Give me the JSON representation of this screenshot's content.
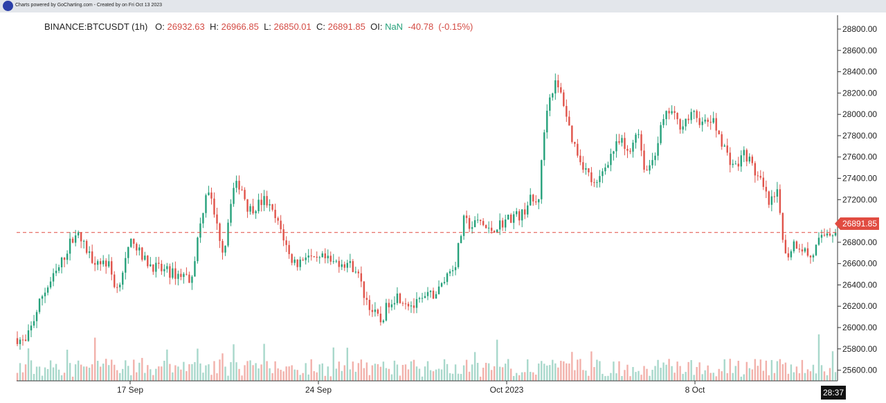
{
  "header": {
    "credit": "Charts powered by GoCharting.com - Created by  on Fri Oct 13 2023"
  },
  "legend": {
    "symbol": "BINANCE:BTCUSDT (1h)",
    "o_label": "O:",
    "o": "26932.63",
    "h_label": "H:",
    "h": "26966.85",
    "l_label": "L:",
    "l": "26850.01",
    "c_label": "C:",
    "c": "26891.85",
    "oi_label": "OI:",
    "oi": "NaN",
    "change": "-40.78",
    "change_pct": "(-0.15%)"
  },
  "last_price_label": "26891.85",
  "countdown": "28:37",
  "colors": {
    "up": "#26a17b",
    "down": "#e0534a",
    "last_line": "#e14c41",
    "volume_up": "#a8d8cb",
    "volume_down": "#f2b1ab"
  },
  "chart_data": {
    "type": "candlestick",
    "timeframe": "1h",
    "y_ticks": [
      "28800.00",
      "28600.00",
      "28400.00",
      "28200.00",
      "28000.00",
      "27800.00",
      "27600.00",
      "27400.00",
      "27200.00",
      "27000.00",
      "26800.00",
      "26600.00",
      "26400.00",
      "26200.00",
      "26000.00",
      "25800.00",
      "25600.00"
    ],
    "ylim": [
      25500,
      28930
    ],
    "x_tick_labels": [
      "17 Sep",
      "24 Sep",
      "Oct 2023",
      "8 Oct"
    ],
    "last_price": 26891.85,
    "price_path": [
      [
        0,
        25900
      ],
      [
        2,
        25850
      ],
      [
        6,
        26300
      ],
      [
        10,
        26550
      ],
      [
        14,
        26900
      ],
      [
        18,
        26650
      ],
      [
        22,
        26600
      ],
      [
        24,
        26350
      ],
      [
        28,
        26850
      ],
      [
        30,
        26650
      ],
      [
        34,
        26550
      ],
      [
        38,
        26500
      ],
      [
        40,
        26500
      ],
      [
        42,
        26450
      ],
      [
        44,
        26900
      ],
      [
        46,
        27350
      ],
      [
        48,
        27000
      ],
      [
        50,
        26700
      ],
      [
        52,
        27300
      ],
      [
        54,
        27350
      ],
      [
        56,
        27100
      ],
      [
        58,
        27150
      ],
      [
        60,
        27200
      ],
      [
        62,
        27050
      ],
      [
        64,
        26900
      ],
      [
        66,
        26650
      ],
      [
        68,
        26600
      ],
      [
        70,
        26700
      ],
      [
        72,
        26600
      ],
      [
        74,
        26650
      ],
      [
        76,
        26600
      ],
      [
        78,
        26620
      ],
      [
        80,
        26600
      ],
      [
        82,
        26550
      ],
      [
        84,
        26300
      ],
      [
        86,
        26150
      ],
      [
        88,
        26050
      ],
      [
        90,
        26250
      ],
      [
        92,
        26300
      ],
      [
        94,
        26250
      ],
      [
        96,
        26200
      ],
      [
        98,
        26250
      ],
      [
        100,
        26300
      ],
      [
        102,
        26350
      ],
      [
        104,
        26500
      ],
      [
        106,
        26600
      ],
      [
        108,
        27000
      ],
      [
        110,
        26950
      ],
      [
        112,
        27000
      ],
      [
        114,
        26900
      ],
      [
        116,
        26950
      ],
      [
        118,
        27000
      ],
      [
        120,
        27050
      ],
      [
        122,
        27050
      ],
      [
        124,
        27200
      ],
      [
        126,
        27150
      ],
      [
        128,
        28050
      ],
      [
        130,
        28300
      ],
      [
        132,
        28150
      ],
      [
        134,
        27800
      ],
      [
        136,
        27600
      ],
      [
        138,
        27450
      ],
      [
        140,
        27300
      ],
      [
        142,
        27500
      ],
      [
        144,
        27650
      ],
      [
        146,
        27750
      ],
      [
        148,
        27600
      ],
      [
        150,
        27900
      ],
      [
        152,
        27450
      ],
      [
        154,
        27600
      ],
      [
        156,
        27900
      ],
      [
        158,
        28050
      ],
      [
        160,
        27900
      ],
      [
        162,
        27950
      ],
      [
        164,
        28000
      ],
      [
        166,
        27900
      ],
      [
        168,
        27950
      ],
      [
        170,
        27800
      ],
      [
        172,
        27600
      ],
      [
        174,
        27500
      ],
      [
        176,
        27650
      ],
      [
        178,
        27500
      ],
      [
        180,
        27350
      ],
      [
        182,
        27150
      ],
      [
        184,
        27250
      ],
      [
        186,
        26650
      ],
      [
        188,
        26800
      ],
      [
        190,
        26750
      ],
      [
        192,
        26650
      ],
      [
        194,
        26800
      ],
      [
        196,
        26900
      ],
      [
        198,
        26891.85
      ]
    ],
    "volume_ylim": [
      0,
      100
    ]
  }
}
